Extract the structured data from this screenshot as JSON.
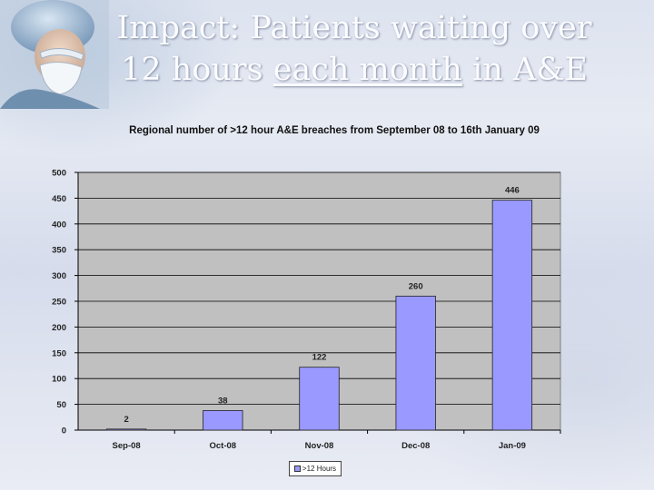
{
  "slide": {
    "title_line1": "Impact: Patients waiting over",
    "title_line2_pre": "12 hours ",
    "title_line2_underlined": "each month",
    "title_line2_post": " in A&E"
  },
  "chart_data": {
    "type": "bar",
    "title": "Regional number of >12 hour A&E breaches from September 08 to 16th January 09",
    "categories": [
      "Sep-08",
      "Oct-08",
      "Nov-08",
      "Dec-08",
      "Jan-09"
    ],
    "series": [
      {
        "name": ">12 Hours",
        "values": [
          2,
          38,
          122,
          260,
          446
        ],
        "color": "#9999ff"
      }
    ],
    "yticks": [
      0,
      50,
      100,
      150,
      200,
      250,
      300,
      350,
      400,
      450,
      500
    ],
    "ylim": [
      0,
      500
    ],
    "xlabel": "",
    "ylabel": "",
    "grid": "horizontal",
    "legend_position": "bottom",
    "plot_background": "#c0c0c0"
  }
}
